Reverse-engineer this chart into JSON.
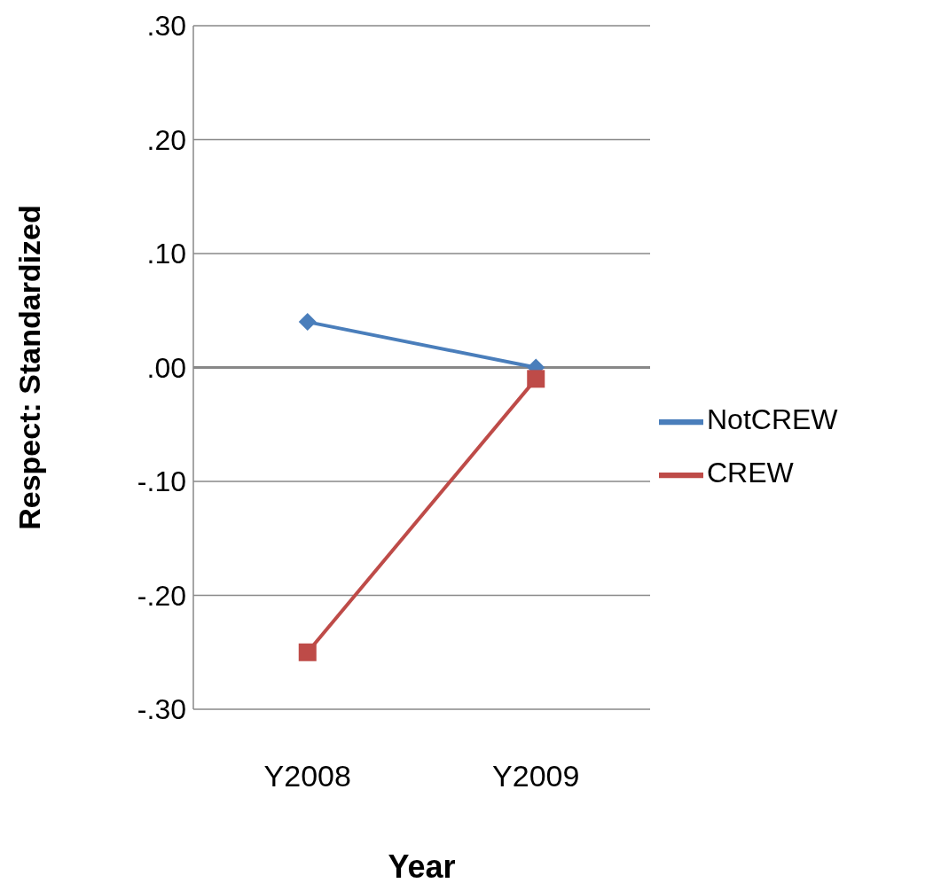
{
  "chart_data": {
    "type": "line",
    "xlabel": "Year",
    "ylabel": "Respect: Standardized",
    "categories": [
      "Y2008",
      "Y2009"
    ],
    "series": [
      {
        "name": "NotCREW",
        "color": "#4a7ebb",
        "values": [
          0.04,
          0.0
        ],
        "marker": "diamond"
      },
      {
        "name": "CREW",
        "color": "#be4b48",
        "values": [
          -0.25,
          -0.01
        ],
        "marker": "square"
      }
    ],
    "ylim": [
      -0.3,
      0.3
    ],
    "yticks": [
      {
        "value": -0.3,
        "label": "-.30"
      },
      {
        "value": -0.2,
        "label": "-.20"
      },
      {
        "value": -0.1,
        "label": "-.10"
      },
      {
        "value": 0,
        "label": ".00"
      },
      {
        "value": 0.1,
        "label": ".10"
      },
      {
        "value": 0.2,
        "label": ".20"
      },
      {
        "value": 0.3,
        "label": ".30"
      }
    ],
    "grid": "y",
    "legend": "right",
    "line_style": "solid"
  }
}
